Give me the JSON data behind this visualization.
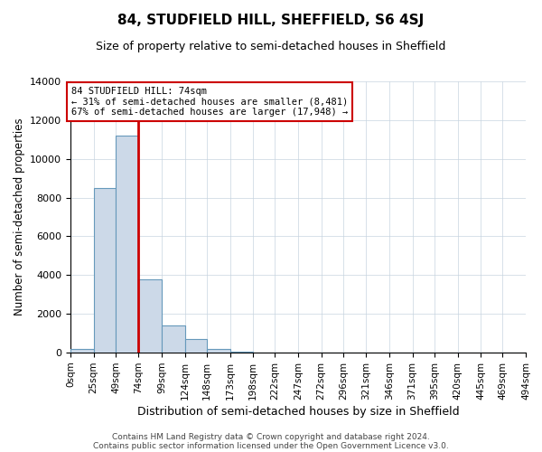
{
  "title": "84, STUDFIELD HILL, SHEFFIELD, S6 4SJ",
  "subtitle": "Size of property relative to semi-detached houses in Sheffield",
  "xlabel": "Distribution of semi-detached houses by size in Sheffield",
  "ylabel": "Number of semi-detached properties",
  "property_size": 74,
  "pct_smaller": 31,
  "pct_larger": 67,
  "n_smaller": "8,481",
  "n_larger": "17,948",
  "bar_color": "#ccd9e8",
  "bar_edge_color": "#6699bb",
  "vline_color": "#cc0000",
  "annotation_box_color": "#cc0000",
  "ylim": [
    0,
    14000
  ],
  "bin_edges": [
    0,
    25,
    49,
    74,
    99,
    124,
    148,
    173,
    198,
    222,
    247,
    272,
    296,
    321,
    346,
    371,
    395,
    420,
    445,
    469,
    494
  ],
  "bin_labels": [
    "0sqm",
    "25sqm",
    "49sqm",
    "74sqm",
    "99sqm",
    "124sqm",
    "148sqm",
    "173sqm",
    "198sqm",
    "222sqm",
    "247sqm",
    "272sqm",
    "296sqm",
    "321sqm",
    "346sqm",
    "371sqm",
    "395sqm",
    "420sqm",
    "445sqm",
    "469sqm",
    "494sqm"
  ],
  "bar_heights": [
    200,
    8481,
    11200,
    3800,
    1400,
    700,
    200,
    50,
    20,
    10,
    5,
    3,
    2,
    1,
    1,
    0,
    0,
    0,
    0,
    0
  ],
  "footer_line1": "Contains HM Land Registry data © Crown copyright and database right 2024.",
  "footer_line2": "Contains public sector information licensed under the Open Government Licence v3.0.",
  "background_color": "#ffffff",
  "grid_color": "#c8d4e0"
}
